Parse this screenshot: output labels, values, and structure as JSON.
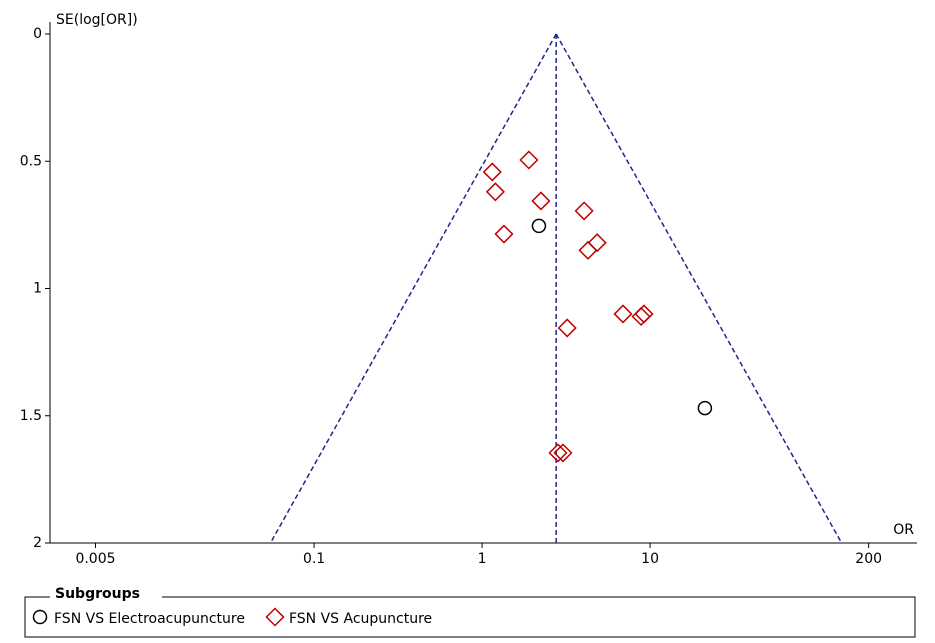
{
  "chart_data": {
    "type": "scatter",
    "y_label": "SE(log[OR])",
    "x_label": "OR",
    "xscale": "log",
    "xlim": [
      0.00268,
      388
    ],
    "xticks": [
      0.005,
      0.1,
      1,
      10,
      200
    ],
    "ylim": [
      0,
      2
    ],
    "yticks": [
      0,
      0.5,
      1,
      1.5,
      2
    ],
    "y_inverted": true,
    "reference_line": 2.76,
    "funnel_bottom": [
      0.055,
      138
    ],
    "funnel_color": "#23238e",
    "legend_title": "Subgroups",
    "series": [
      {
        "name": "FSN VS Electroacupuncture",
        "color": "#000000",
        "marker": "circle",
        "x": [
          2.18,
          21.2
        ],
        "values": [
          0.754,
          1.47
        ]
      },
      {
        "name": "FSN VS Acupuncture",
        "color": "#c00000",
        "marker": "diamond",
        "x": [
          1.9,
          1.15,
          1.2,
          2.24,
          4.05,
          1.35,
          4.84,
          4.27,
          6.9,
          8.84,
          9.2,
          3.21,
          2.83,
          3.03
        ],
        "values": [
          0.495,
          0.542,
          0.62,
          0.656,
          0.695,
          0.786,
          0.82,
          0.85,
          1.1,
          1.11,
          1.1,
          1.155,
          1.646,
          1.646
        ]
      }
    ]
  }
}
